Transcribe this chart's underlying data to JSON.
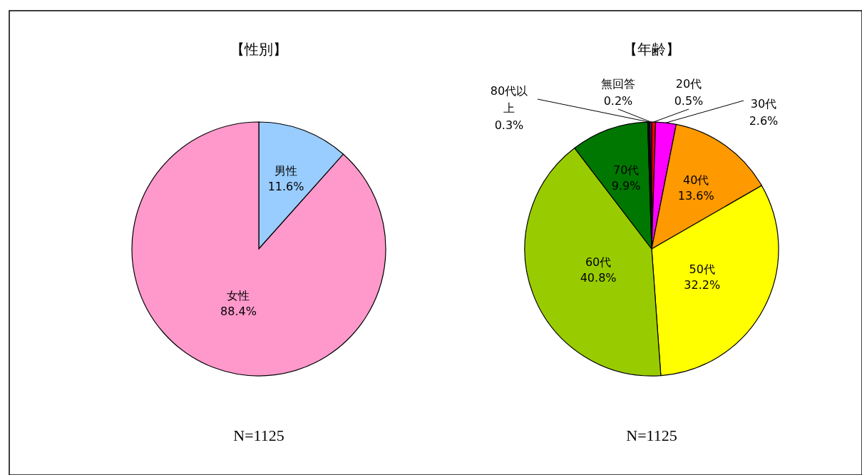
{
  "chart_data": [
    {
      "type": "pie",
      "title": "【性別】",
      "categories": [
        "男性",
        "女性"
      ],
      "values": [
        11.6,
        88.4
      ],
      "value_labels": [
        "11.6%",
        "88.4%"
      ],
      "colors": [
        "#99ccff",
        "#ff99cc"
      ],
      "annotations": [
        "N=1125"
      ]
    },
    {
      "type": "pie",
      "title": "【年齢】",
      "categories": [
        "20代",
        "30代",
        "40代",
        "50代",
        "60代",
        "70代",
        "80代以上",
        "無回答"
      ],
      "values": [
        0.5,
        2.6,
        13.6,
        32.2,
        40.8,
        9.9,
        0.3,
        0.2
      ],
      "value_labels": [
        "0.5%",
        "2.6%",
        "13.6%",
        "32.2%",
        "40.8%",
        "9.9%",
        "0.3%",
        "0.2%"
      ],
      "colors": [
        "#ff0000",
        "#ff00ff",
        "#ff9900",
        "#ffff00",
        "#99cc00",
        "#007700",
        "#111111",
        "#993399"
      ],
      "annotations": [
        "N=1125"
      ]
    }
  ]
}
